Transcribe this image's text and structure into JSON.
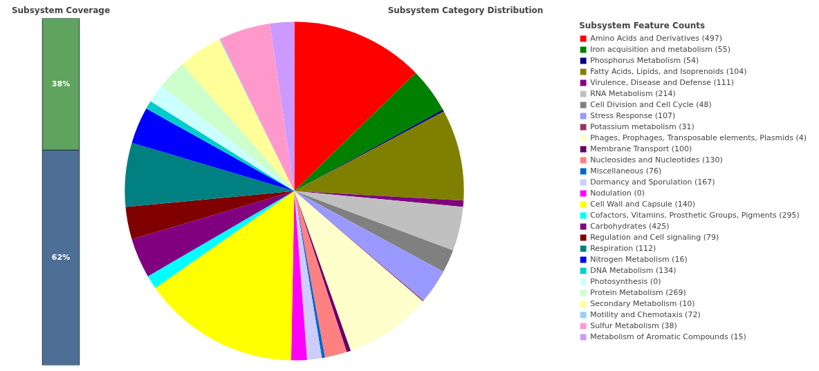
{
  "chart_data": [
    {
      "type": "bar",
      "title": "Subsystem Coverage",
      "stacked": true,
      "categories": [
        null
      ],
      "series": [
        {
          "color": "#4e6f95",
          "values": [
            62
          ],
          "value_labels": [
            "62%"
          ]
        },
        {
          "color": "#5fa35f",
          "values": [
            38
          ],
          "value_labels": [
            "38%"
          ]
        }
      ]
    },
    {
      "type": "pie",
      "title": "Subsystem Category Distribution",
      "legend_title": "Subsystem Feature Counts",
      "legend": "right",
      "categories": [
        "Amino Acids and Derivatives (497)",
        "Iron acquisition and metabolism (55)",
        "Phosphorus Metabolism (54)",
        "Fatty Acids, Lipids, and Isoprenoids (104)",
        "Virulence, Disease and Defense (111)",
        "RNA Metabolism (214)",
        "Cell Division and Cell Cycle (48)",
        "Stress Response (107)",
        "Potassium metabolism (31)",
        "Phages, Prophages, Transposable elements, Plasmids (4)",
        "Membrane Transport (100)",
        "Nucleosides and Nucleotides (130)",
        "Miscellaneous (76)",
        "Dormancy and Sporulation (167)",
        "Nodulation (0)",
        "Cell Wall and Capsule (140)",
        "Cofactors, Vitamins, Prosthetic Groups, Pigments (295)",
        "Carbohydrates (425)",
        "Regulation and Cell signaling (79)",
        "Respiration (112)",
        "Nitrogen Metabolism (16)",
        "DNA Metabolism (134)",
        "Photosynthesis (0)",
        "Protein Metabolism (269)",
        "Secondary Metabolism (10)",
        "Motility and Chemotaxis (72)",
        "Sulfur Metabolism (38)",
        "Metabolism of Aromatic Compounds (15)"
      ],
      "values": [
        12.7,
        4.3,
        0.2,
        8.7,
        0.6,
        4.2,
        2.2,
        3.3,
        0.1,
        8.3,
        0.4,
        2.1,
        0.3,
        1.4,
        1.5,
        15.0,
        1.3,
        3.8,
        3.1,
        6.1,
        3.5,
        0.8,
        1.8,
        2.8,
        4.2,
        0.1,
        4.9,
        2.3
      ],
      "colors": [
        "#ff0000",
        "#008000",
        "#000080",
        "#808000",
        "#800080",
        "#c0c0c0",
        "#808080",
        "#9999ff",
        "#993366",
        "#ffffcc",
        "#660066",
        "#ff8080",
        "#0066cc",
        "#ccccff",
        "#ff00ff",
        "#ffff00",
        "#00ffff",
        "#800080",
        "#800000",
        "#008080",
        "#0000ff",
        "#00cccc",
        "#ccffff",
        "#ccffcc",
        "#ffff99",
        "#99ccff",
        "#ff99cc",
        "#cc99ff"
      ]
    }
  ]
}
